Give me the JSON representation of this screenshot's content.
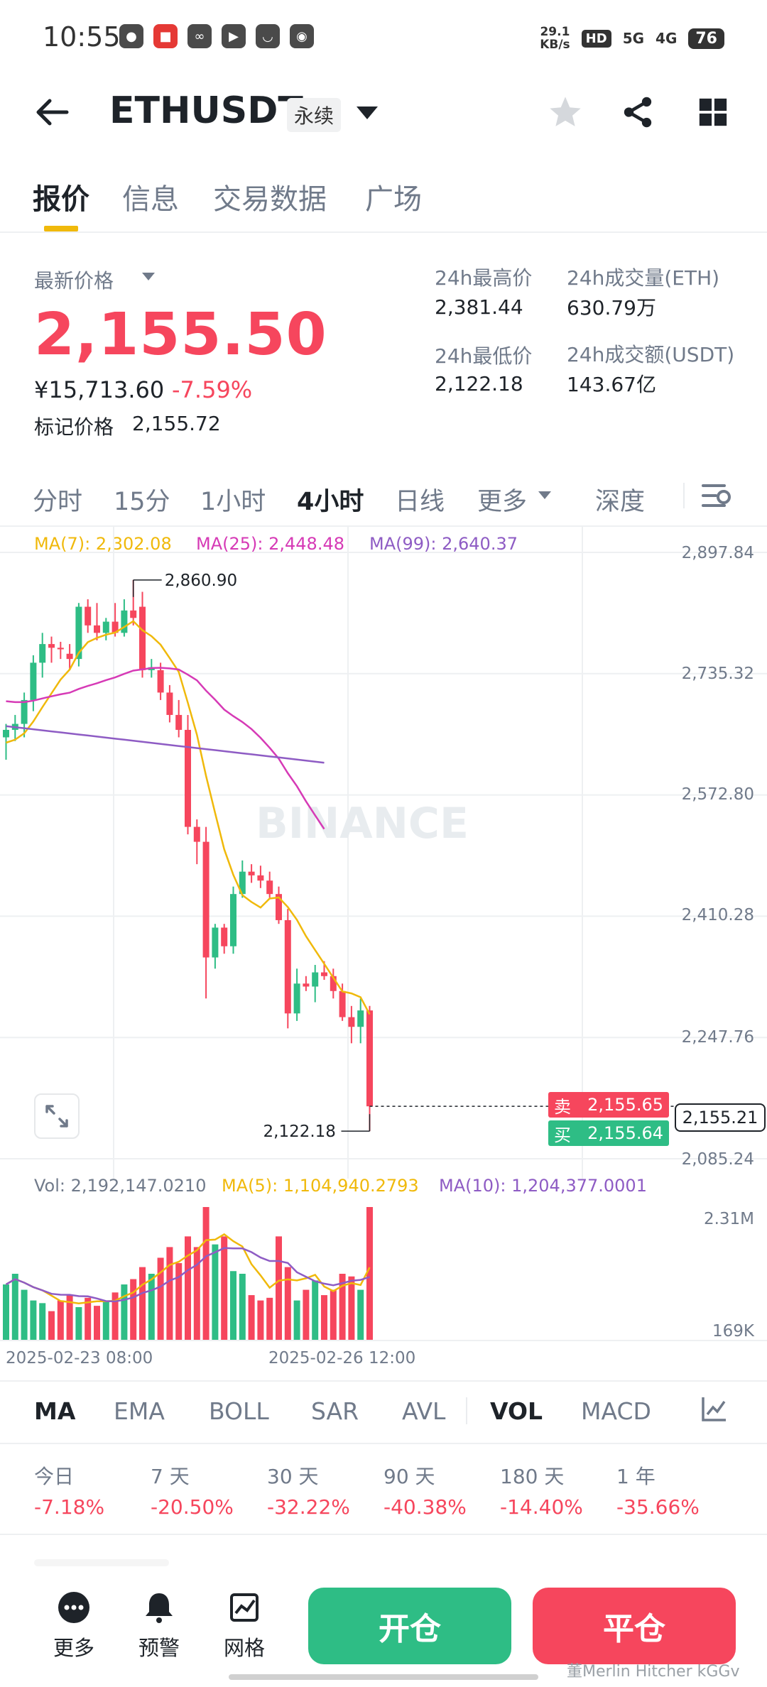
{
  "status_bar": {
    "time": "10:55",
    "speed_value": "29.1",
    "speed_unit": "KB/s",
    "hd": "HD",
    "network_5g": "5G",
    "network_4g": "4G",
    "battery": "76"
  },
  "header": {
    "symbol": "ETHUSDT",
    "contract_type": "永续"
  },
  "tabs": [
    "报价",
    "信息",
    "交易数据",
    "广场"
  ],
  "price": {
    "last_price_label": "最新价格",
    "last_price": "2,155.50",
    "cny_price": "¥15,713.60",
    "change_pct": "-7.59%",
    "mark_price_label": "标记价格",
    "mark_price": "2,155.72",
    "high_label": "24h最高价",
    "high": "2,381.44",
    "low_label": "24h最低价",
    "low": "2,122.18",
    "volume_label": "24h成交量(ETH)",
    "volume": "630.79万",
    "turnover_label": "24h成交额(USDT)",
    "turnover": "143.67亿"
  },
  "interval_tabs": [
    "分时",
    "15分",
    "1小时",
    "4小时",
    "日线",
    "更多",
    "深度"
  ],
  "chart": {
    "ma7_label": "MA(7): 2,302.08",
    "ma25_label": "MA(25): 2,448.48",
    "ma99_label": "MA(99): 2,640.37",
    "y_axis": [
      "2,897.84",
      "2,735.32",
      "2,572.80",
      "2,410.28",
      "2,247.76",
      "2,085.24"
    ],
    "high_marker": "2,860.90",
    "low_marker": "2,122.18",
    "sell_label": "卖",
    "sell_price": "2,155.65",
    "buy_label": "买",
    "buy_price": "2,155.64",
    "current_price": "2,155.21",
    "watermark": "BINANCE",
    "vol_label": "Vol: 2,192,147.0210",
    "vol_ma5_label": "MA(5): 1,104,940.2793",
    "vol_ma10_label": "MA(10): 1,204,377.0001",
    "vol_axis_top": "2.31M",
    "vol_axis_bottom": "169K",
    "date_1": "2025-02-23 08:00",
    "date_2": "2025-02-26 12:00",
    "colors": {
      "up": "#2ebd85",
      "down": "#f6465d",
      "ma7": "#f0b90b",
      "ma25": "#d63ab6",
      "ma99": "#8e5cc4"
    }
  },
  "chart_data": {
    "type": "candlestick",
    "interval": "4小时",
    "ylim": [
      2085.24,
      2897.84
    ],
    "candles": [
      {
        "o": 2650,
        "h": 2668,
        "l": 2620,
        "c": 2660
      },
      {
        "o": 2660,
        "h": 2680,
        "l": 2645,
        "c": 2668
      },
      {
        "o": 2668,
        "h": 2710,
        "l": 2650,
        "c": 2700
      },
      {
        "o": 2700,
        "h": 2760,
        "l": 2685,
        "c": 2750
      },
      {
        "o": 2750,
        "h": 2790,
        "l": 2730,
        "c": 2775
      },
      {
        "o": 2775,
        "h": 2785,
        "l": 2750,
        "c": 2770
      },
      {
        "o": 2770,
        "h": 2778,
        "l": 2755,
        "c": 2768
      },
      {
        "o": 2762,
        "h": 2775,
        "l": 2740,
        "c": 2755
      },
      {
        "o": 2755,
        "h": 2830,
        "l": 2745,
        "c": 2825
      },
      {
        "o": 2825,
        "h": 2835,
        "l": 2790,
        "c": 2800
      },
      {
        "o": 2800,
        "h": 2830,
        "l": 2780,
        "c": 2790
      },
      {
        "o": 2790,
        "h": 2810,
        "l": 2780,
        "c": 2805
      },
      {
        "o": 2805,
        "h": 2830,
        "l": 2785,
        "c": 2790
      },
      {
        "o": 2790,
        "h": 2835,
        "l": 2785,
        "c": 2820
      },
      {
        "o": 2820,
        "h": 2860.9,
        "l": 2800,
        "c": 2810
      },
      {
        "o": 2825,
        "h": 2845,
        "l": 2730,
        "c": 2740
      },
      {
        "o": 2740,
        "h": 2755,
        "l": 2730,
        "c": 2744
      },
      {
        "o": 2740,
        "h": 2750,
        "l": 2700,
        "c": 2710
      },
      {
        "o": 2710,
        "h": 2720,
        "l": 2670,
        "c": 2680
      },
      {
        "o": 2680,
        "h": 2700,
        "l": 2650,
        "c": 2660
      },
      {
        "o": 2660,
        "h": 2680,
        "l": 2520,
        "c": 2530
      },
      {
        "o": 2530,
        "h": 2540,
        "l": 2480,
        "c": 2510
      },
      {
        "o": 2510,
        "h": 2530,
        "l": 2300,
        "c": 2355
      },
      {
        "o": 2355,
        "h": 2400,
        "l": 2340,
        "c": 2395
      },
      {
        "o": 2395,
        "h": 2400,
        "l": 2360,
        "c": 2370
      },
      {
        "o": 2370,
        "h": 2450,
        "l": 2360,
        "c": 2440
      },
      {
        "o": 2440,
        "h": 2485,
        "l": 2435,
        "c": 2470
      },
      {
        "o": 2470,
        "h": 2480,
        "l": 2455,
        "c": 2465
      },
      {
        "o": 2465,
        "h": 2478,
        "l": 2448,
        "c": 2458
      },
      {
        "o": 2458,
        "h": 2470,
        "l": 2435,
        "c": 2440
      },
      {
        "o": 2440,
        "h": 2450,
        "l": 2400,
        "c": 2405
      },
      {
        "o": 2405,
        "h": 2420,
        "l": 2260,
        "c": 2280
      },
      {
        "o": 2280,
        "h": 2340,
        "l": 2270,
        "c": 2320
      },
      {
        "o": 2320,
        "h": 2330,
        "l": 2310,
        "c": 2316
      },
      {
        "o": 2316,
        "h": 2345,
        "l": 2295,
        "c": 2335
      },
      {
        "o": 2335,
        "h": 2350,
        "l": 2325,
        "c": 2330
      },
      {
        "o": 2330,
        "h": 2340,
        "l": 2300,
        "c": 2310
      },
      {
        "o": 2310,
        "h": 2320,
        "l": 2270,
        "c": 2275
      },
      {
        "o": 2275,
        "h": 2290,
        "l": 2240,
        "c": 2262
      },
      {
        "o": 2262,
        "h": 2300,
        "l": 2240,
        "c": 2284
      },
      {
        "o": 2284,
        "h": 2290,
        "l": 2122.18,
        "c": 2155.5
      }
    ],
    "volume": [
      0.42,
      0.5,
      0.38,
      0.3,
      0.28,
      0.22,
      0.3,
      0.34,
      0.25,
      0.32,
      0.26,
      0.3,
      0.36,
      0.42,
      0.46,
      0.55,
      0.5,
      0.62,
      0.7,
      0.58,
      0.78,
      0.7,
      1.0,
      0.72,
      0.78,
      0.52,
      0.5,
      0.34,
      0.3,
      0.32,
      0.78,
      0.55,
      0.3,
      0.38,
      0.45,
      0.34,
      0.38,
      0.5,
      0.48,
      0.38,
      1.0
    ]
  },
  "indicators": [
    "MA",
    "EMA",
    "BOLL",
    "SAR",
    "AVL",
    "VOL",
    "MACD"
  ],
  "performance": [
    {
      "label": "今日",
      "value": "-7.18%"
    },
    {
      "label": "7 天",
      "value": "-20.50%"
    },
    {
      "label": "30 天",
      "value": "-32.22%"
    },
    {
      "label": "90 天",
      "value": "-40.38%"
    },
    {
      "label": "180 天",
      "value": "-14.40%"
    },
    {
      "label": "1 年",
      "value": "-35.66%"
    }
  ],
  "bottom_nav": {
    "more": "更多",
    "alert": "预警",
    "grid": "网格",
    "open": "开仓",
    "close": "平仓"
  },
  "watermark_corner": "董Merlin Hitcher kGGv"
}
